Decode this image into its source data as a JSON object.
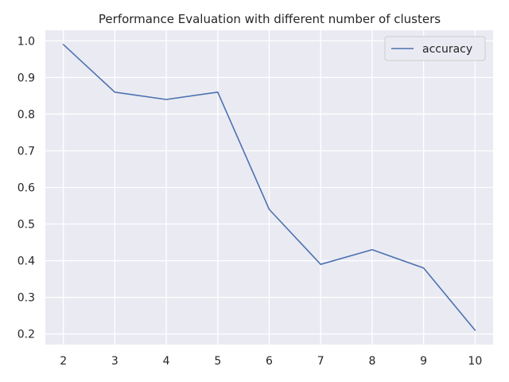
{
  "chart_data": {
    "type": "line",
    "title": "Performance Evaluation with different number of clusters",
    "xlabel": "",
    "ylabel": "",
    "x": [
      2,
      3,
      4,
      5,
      6,
      7,
      8,
      9,
      10
    ],
    "series": [
      {
        "name": "accuracy",
        "values": [
          0.99,
          0.86,
          0.84,
          0.86,
          0.54,
          0.39,
          0.43,
          0.38,
          0.21
        ]
      }
    ],
    "xticks": [
      "2",
      "3",
      "4",
      "5",
      "6",
      "7",
      "8",
      "9",
      "10"
    ],
    "yticks": [
      "0.2",
      "0.3",
      "0.4",
      "0.5",
      "0.6",
      "0.7",
      "0.8",
      "0.9",
      "1.0"
    ],
    "xlim": [
      1.65,
      10.35
    ],
    "ylim": [
      0.171,
      1.029
    ],
    "grid": true,
    "legend_position": "top-right",
    "colors": {
      "background": "#eaeaf2",
      "grid": "#ffffff",
      "line": "#4c72b0"
    }
  }
}
